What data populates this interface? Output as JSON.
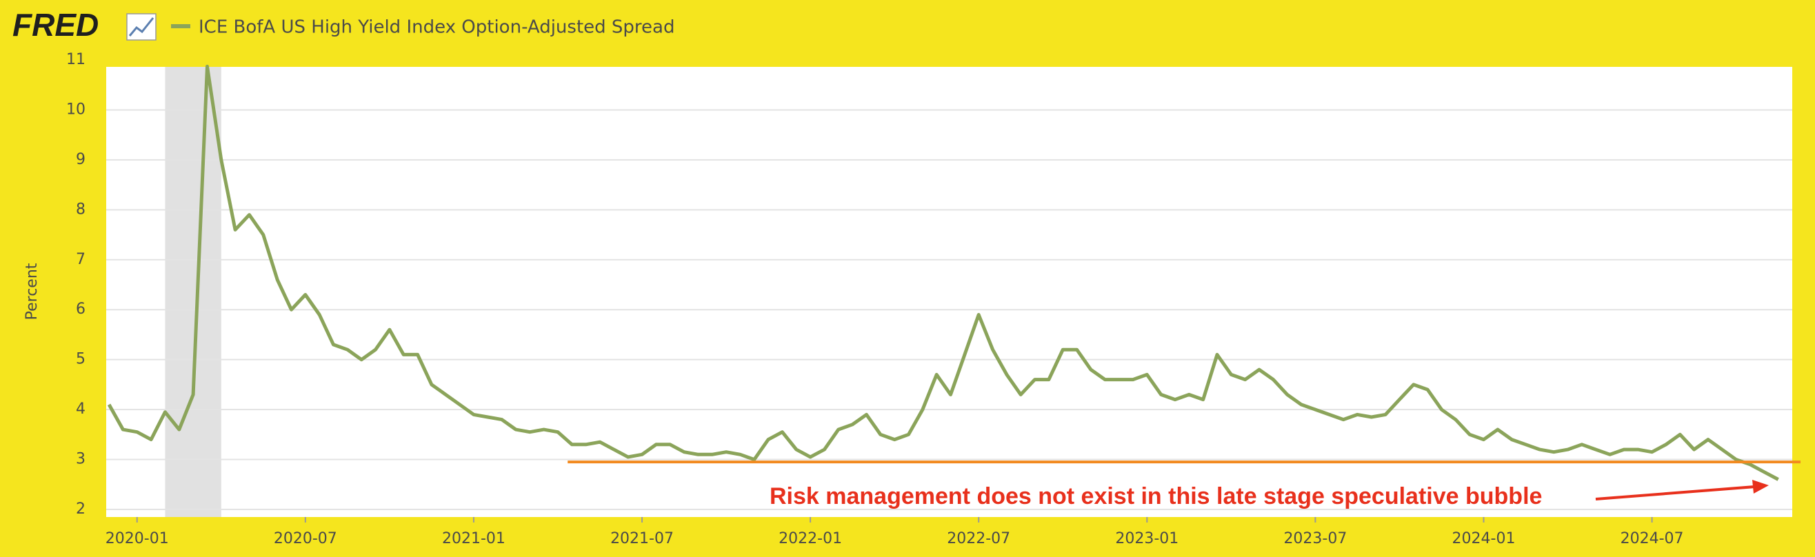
{
  "logo": "FRED",
  "chart_data": {
    "type": "line",
    "ylabel": "Percent",
    "categories": [
      null,
      null,
      "2020-01",
      null,
      null,
      null,
      null,
      null,
      null,
      null,
      null,
      null,
      null,
      null,
      "2020-07",
      null,
      null,
      null,
      null,
      null,
      null,
      null,
      null,
      null,
      null,
      null,
      "2021-01",
      null,
      null,
      null,
      null,
      null,
      null,
      null,
      null,
      null,
      null,
      null,
      "2021-07",
      null,
      null,
      null,
      null,
      null,
      null,
      null,
      null,
      null,
      null,
      null,
      "2022-01",
      null,
      null,
      null,
      null,
      null,
      null,
      null,
      null,
      null,
      null,
      null,
      "2022-07",
      null,
      null,
      null,
      null,
      null,
      null,
      null,
      null,
      null,
      null,
      null,
      "2023-01",
      null,
      null,
      null,
      null,
      null,
      null,
      null,
      null,
      null,
      null,
      null,
      "2023-07",
      null,
      null,
      null,
      null,
      null,
      null,
      null,
      null,
      null,
      null,
      null,
      "2024-01",
      null,
      null,
      null,
      null,
      null,
      null,
      null,
      null,
      null,
      null,
      null,
      "2024-07",
      null,
      null,
      null,
      null,
      null,
      null,
      null,
      null,
      null
    ],
    "series": [
      {
        "name": "ICE BofA US High Yield Index Option-Adjusted Spread",
        "color": "#8ba45a",
        "values": [
          4.1,
          3.6,
          3.55,
          3.4,
          3.95,
          3.6,
          4.3,
          10.87,
          9.0,
          7.6,
          7.9,
          7.5,
          6.6,
          6.0,
          6.3,
          5.9,
          5.3,
          5.2,
          5.0,
          5.2,
          5.6,
          5.1,
          5.1,
          4.5,
          4.3,
          4.1,
          3.9,
          3.85,
          3.8,
          3.6,
          3.55,
          3.6,
          3.55,
          3.3,
          3.3,
          3.35,
          3.2,
          3.05,
          3.1,
          3.3,
          3.3,
          3.15,
          3.1,
          3.1,
          3.15,
          3.1,
          3.0,
          3.4,
          3.55,
          3.2,
          3.05,
          3.2,
          3.6,
          3.7,
          3.9,
          3.5,
          3.4,
          3.5,
          4.0,
          4.7,
          4.3,
          5.1,
          5.9,
          5.2,
          4.7,
          4.3,
          4.6,
          4.6,
          5.2,
          5.2,
          4.8,
          4.6,
          4.6,
          4.6,
          4.7,
          4.3,
          4.2,
          4.3,
          4.2,
          5.1,
          4.7,
          4.6,
          4.8,
          4.6,
          4.3,
          4.1,
          4.0,
          3.9,
          3.8,
          3.9,
          3.85,
          3.9,
          4.2,
          4.5,
          4.4,
          4.0,
          3.8,
          3.5,
          3.4,
          3.6,
          3.4,
          3.3,
          3.2,
          3.15,
          3.2,
          3.3,
          3.2,
          3.1,
          3.2,
          3.2,
          3.15,
          3.3,
          3.5,
          3.2,
          3.4,
          3.2,
          3.0,
          2.9,
          2.75,
          2.6
        ]
      }
    ],
    "ylim": [
      2,
      11
    ],
    "yticks": [
      2,
      3,
      4,
      5,
      6,
      7,
      8,
      9,
      10,
      11
    ],
    "grid": true,
    "annotation": {
      "text": "Risk management does not exist in this late stage speculative bubble",
      "value": 2.95,
      "line_color": "#f28a1f",
      "text_color": "#e8301c"
    }
  }
}
